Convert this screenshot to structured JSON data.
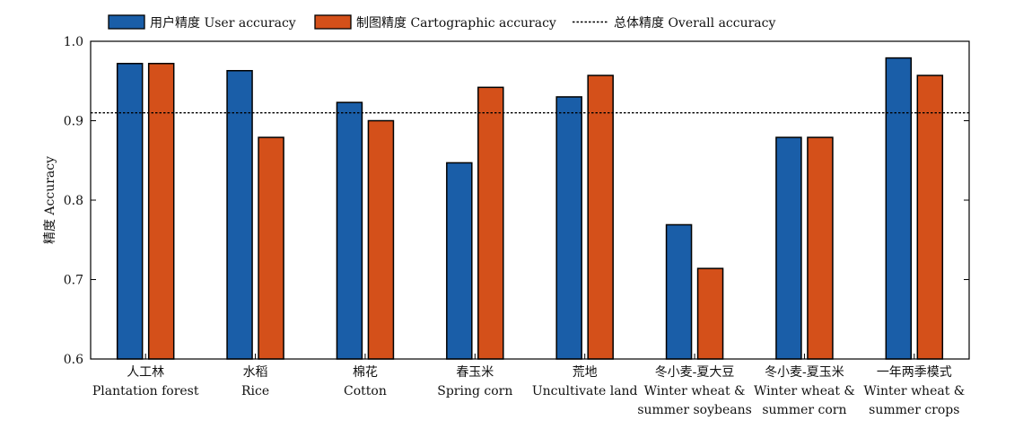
{
  "chart_data": {
    "type": "bar",
    "title": "",
    "xlabel": "",
    "ylabel": "精度 Accuracy",
    "ylim": [
      0.6,
      1.0
    ],
    "yticks": [
      "0.6",
      "0.7",
      "0.8",
      "0.9",
      "1.0"
    ],
    "categories": [
      [
        "人工林",
        "Plantation forest"
      ],
      [
        "水稻",
        "Rice"
      ],
      [
        "棉花",
        "Cotton"
      ],
      [
        "春玉米",
        "Spring corn"
      ],
      [
        "荒地",
        "Uncultivate land"
      ],
      [
        "冬小麦-夏大豆",
        "Winter wheat &",
        "summer soybeans"
      ],
      [
        "冬小麦-夏玉米",
        "Winter wheat &",
        "summer corn"
      ],
      [
        "一年两季模式",
        "Winter wheat &",
        "summer crops"
      ]
    ],
    "series": [
      {
        "name": "用户精度 User accuracy",
        "color": "#1a5ea8",
        "values": [
          0.972,
          0.963,
          0.923,
          0.847,
          0.93,
          0.769,
          0.879,
          0.979
        ]
      },
      {
        "name": "制图精度 Cartographic accuracy",
        "color": "#d4501a",
        "values": [
          0.972,
          0.879,
          0.9,
          0.942,
          0.957,
          0.714,
          0.879,
          0.957
        ]
      }
    ],
    "reference_line": {
      "name": "总体精度 Overall accuracy",
      "value": 0.91,
      "style": "dotted"
    },
    "legend_position": "top",
    "grid": false
  }
}
